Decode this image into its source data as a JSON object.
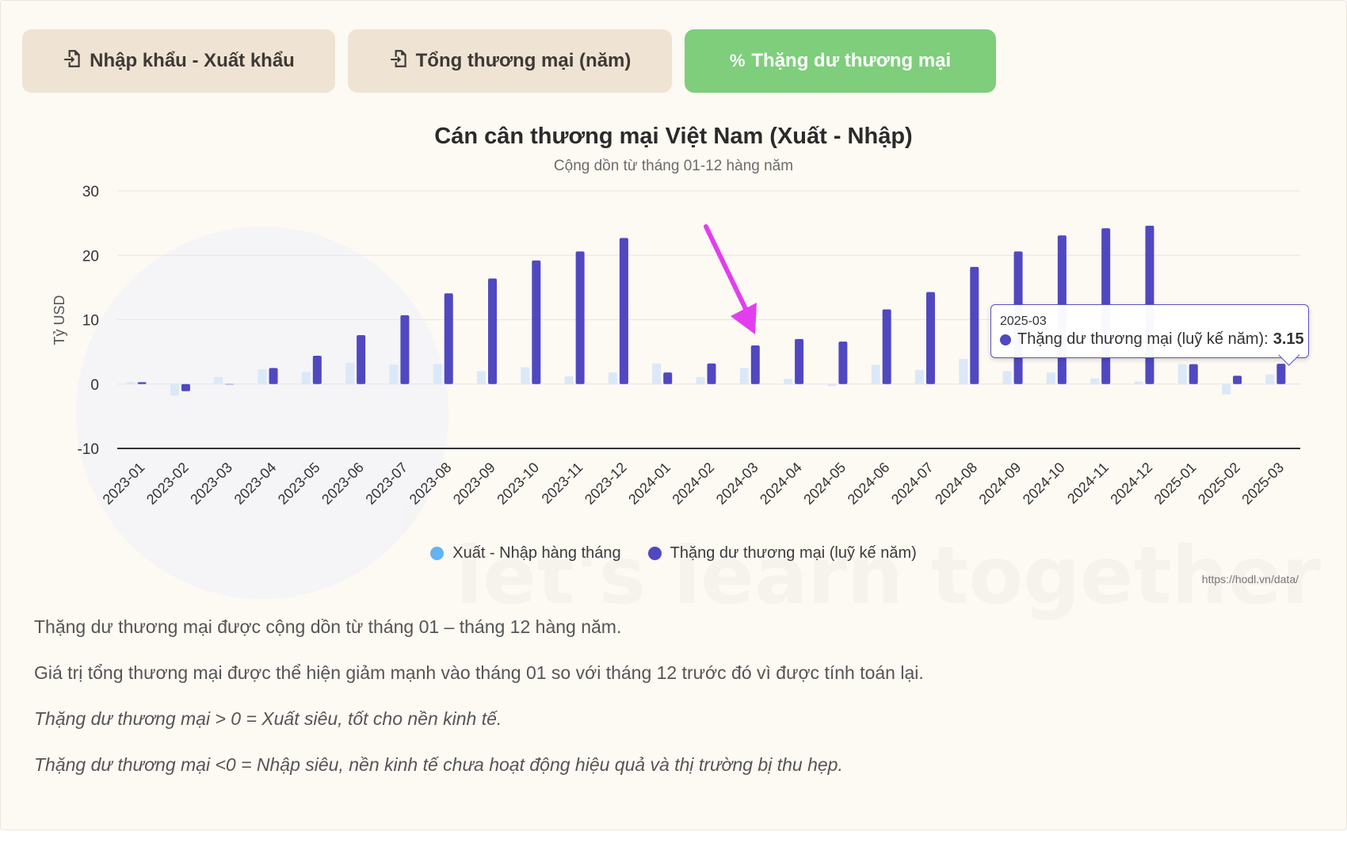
{
  "tabs": [
    {
      "label": "Nhập khẩu - Xuất khẩu",
      "icon": "file-import-icon",
      "active": false
    },
    {
      "label": "Tổng thương mại (năm)",
      "icon": "file-import-icon",
      "active": false
    },
    {
      "label": "Thặng dư thương mại",
      "icon": "percent-icon",
      "active": true
    }
  ],
  "colors": {
    "monthly": "#dbe8f8",
    "cumulative": "#5048c0",
    "active_tab": "#7ece7b",
    "inactive_tab": "#efe3d4",
    "legend_monthly": "#63b3ef",
    "arrow": "#e23ef0"
  },
  "chart_data": {
    "type": "bar",
    "title": "Cán cân thương mại Việt Nam (Xuất - Nhập)",
    "subtitle": "Cộng dồn từ tháng 01-12 hàng năm",
    "ylabel": "Tỷ USD",
    "xlabel": "",
    "ylim": [
      -10,
      30
    ],
    "yticks": [
      30,
      20,
      10,
      0,
      -10
    ],
    "grid": true,
    "legend_placement": "bottom",
    "categories": [
      "2023-01",
      "2023-02",
      "2023-03",
      "2023-04",
      "2023-05",
      "2023-06",
      "2023-07",
      "2023-08",
      "2023-09",
      "2023-10",
      "2023-11",
      "2023-12",
      "2024-01",
      "2024-02",
      "2024-03",
      "2024-04",
      "2024-05",
      "2024-06",
      "2024-07",
      "2024-08",
      "2024-09",
      "2024-10",
      "2024-11",
      "2024-12",
      "2025-01",
      "2025-02",
      "2025-03"
    ],
    "series": [
      {
        "name": "Xuất - Nhập hàng tháng",
        "values": [
          0.3,
          -1.8,
          1.1,
          2.3,
          1.9,
          3.3,
          3.0,
          3.1,
          2.0,
          2.6,
          1.2,
          1.8,
          3.2,
          1.1,
          2.5,
          0.8,
          -0.3,
          3.0,
          2.2,
          3.9,
          2.0,
          1.8,
          0.9,
          0.4,
          3.1,
          -1.6,
          1.5
        ]
      },
      {
        "name": "Thặng dư thương mại (luỹ kế năm)",
        "values": [
          0.3,
          -1.1,
          0.0,
          2.5,
          4.4,
          7.6,
          10.7,
          14.1,
          16.4,
          19.2,
          20.6,
          22.7,
          1.8,
          3.2,
          6.0,
          7.0,
          6.6,
          11.6,
          14.3,
          18.2,
          20.6,
          23.1,
          24.2,
          24.6,
          3.1,
          1.3,
          3.15
        ]
      }
    ]
  },
  "tooltip": {
    "date": "2025-03",
    "label": "Thặng dư thương mại (luỹ kế năm):",
    "value": "3.15"
  },
  "credit": "https://hodl.vn/data/",
  "watermark": "let's learn together",
  "notes": [
    "Thặng dư thương mại được cộng dồn từ tháng 01 – tháng 12 hàng năm.",
    "Giá trị tổng thương mại được thể hiện giảm mạnh vào tháng 01 so với tháng 12 trước đó vì được tính toán lại.",
    "Thặng dư thương mại > 0 = Xuất siêu, tốt cho nền kinh tế.",
    "Thặng dư thương mại <0 = Nhập siêu, nền kinh tế chưa hoạt động hiệu quả và thị trường bị thu hẹp."
  ]
}
